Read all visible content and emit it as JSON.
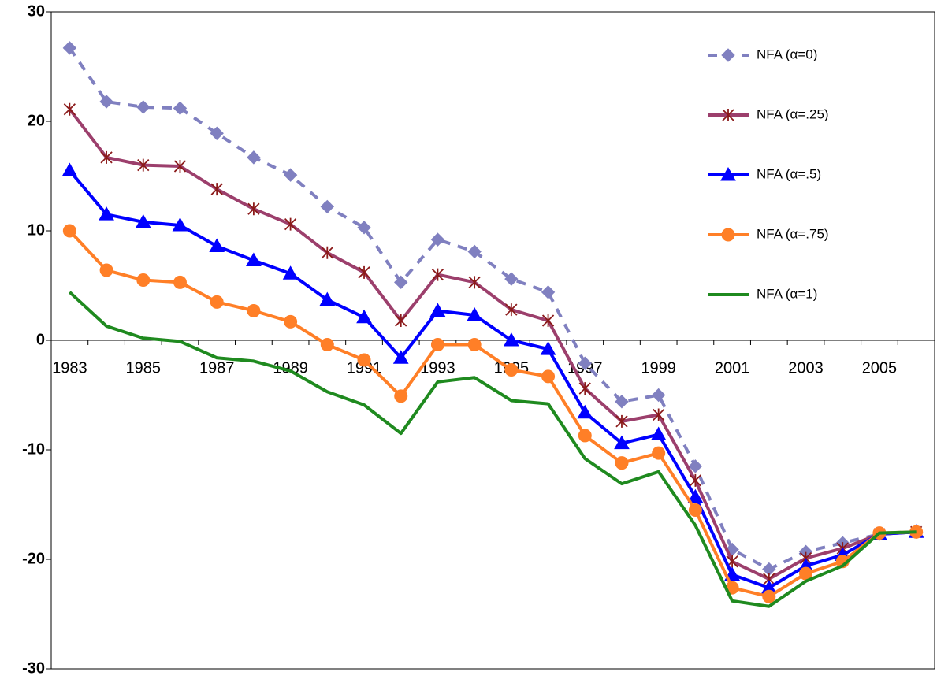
{
  "chart_data": {
    "type": "line",
    "categories": [
      "1983",
      null,
      "1985",
      null,
      "1987",
      null,
      "1989",
      null,
      "1991",
      null,
      "1993",
      null,
      "1995",
      null,
      "1997",
      null,
      "1999",
      null,
      "2001",
      null,
      "2003",
      null,
      "2005",
      null
    ],
    "series": [
      {
        "name": "NFA (α=0)",
        "color": "#8080c0",
        "marker": "diamond",
        "dashed": true,
        "values": [
          26.7,
          21.8,
          21.3,
          21.2,
          18.9,
          16.7,
          15.1,
          12.2,
          10.3,
          5.3,
          9.2,
          8.1,
          5.6,
          4.4,
          -2.1,
          -5.6,
          -5.0,
          -11.5,
          -19.1,
          -20.9,
          -19.3,
          -18.5,
          -17.7,
          -17.5
        ]
      },
      {
        "name": "NFA (α=.25)",
        "color": "#9c3f6c",
        "marker": "star",
        "values": [
          21.1,
          16.7,
          16.0,
          15.9,
          13.8,
          12.0,
          10.6,
          8.0,
          6.2,
          1.8,
          6.0,
          5.3,
          2.8,
          1.8,
          -4.4,
          -7.4,
          -6.8,
          -12.8,
          -20.2,
          -21.8,
          -19.9,
          -19.0,
          -17.7,
          -17.5
        ]
      },
      {
        "name": "NFA (α=.5)",
        "color": "#0000ff",
        "marker": "triangle",
        "values": [
          15.5,
          11.5,
          10.8,
          10.5,
          8.6,
          7.3,
          6.1,
          3.7,
          2.1,
          -1.6,
          2.7,
          2.3,
          0.0,
          -0.8,
          -6.6,
          -9.4,
          -8.6,
          -14.3,
          -21.4,
          -22.6,
          -20.6,
          -19.6,
          -17.7,
          -17.5
        ]
      },
      {
        "name": "NFA (α=.75)",
        "color": "#ff7f27",
        "marker": "circle",
        "values": [
          10.0,
          6.4,
          5.5,
          5.3,
          3.5,
          2.7,
          1.7,
          -0.4,
          -1.8,
          -5.1,
          -0.4,
          -0.4,
          -2.7,
          -3.3,
          -8.7,
          -11.2,
          -10.3,
          -15.5,
          -22.6,
          -23.4,
          -21.3,
          -20.2,
          -17.6,
          -17.5
        ]
      },
      {
        "name": "NFA (α=1)",
        "color": "#1f8a1f",
        "marker": "none",
        "values": [
          4.4,
          1.3,
          0.2,
          -0.1,
          -1.6,
          -1.9,
          -2.8,
          -4.7,
          -5.9,
          -8.5,
          -3.8,
          -3.4,
          -5.5,
          -5.8,
          -10.8,
          -13.1,
          -12.0,
          -16.9,
          -23.8,
          -24.3,
          -22.0,
          -20.6,
          -17.6,
          -17.5
        ]
      }
    ],
    "ylim": [
      -30,
      30
    ],
    "yticks": [
      -30,
      -20,
      -10,
      0,
      10,
      20,
      30
    ],
    "grid": false,
    "legend": "upper right"
  }
}
